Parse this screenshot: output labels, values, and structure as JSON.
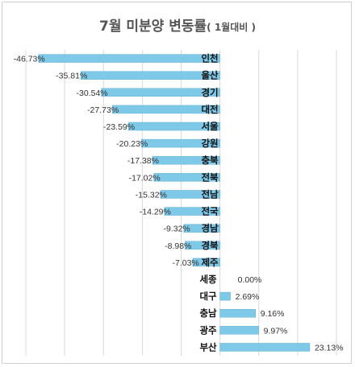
{
  "chart_data": {
    "type": "bar",
    "orientation": "horizontal",
    "title": "7월 미분양 변동률",
    "subtitle": "( 1월대비 )",
    "categories": [
      "인천",
      "울산",
      "경기",
      "대전",
      "서울",
      "강원",
      "충북",
      "전북",
      "전남",
      "전국",
      "경남",
      "경북",
      "제주",
      "세종",
      "대구",
      "충남",
      "광주",
      "부산"
    ],
    "values": [
      -46.73,
      -35.81,
      -30.54,
      -27.73,
      -23.59,
      -20.23,
      -17.38,
      -17.02,
      -15.32,
      -14.29,
      -9.32,
      -8.98,
      -7.03,
      0.0,
      2.69,
      9.16,
      9.97,
      23.13
    ],
    "value_labels": [
      "-46.73%",
      "-35.81%",
      "-30.54%",
      "-27.73%",
      "-23.59%",
      "-20.23%",
      "-17.38%",
      "-17.02%",
      "-15.32%",
      "-14.29%",
      "-9.32%",
      "-8.98%",
      "-7.03%",
      "0.00%",
      "2.69%",
      "9.16%",
      "9.97%",
      "23.13%"
    ],
    "xlim": [
      -50,
      30
    ],
    "grid": true,
    "bar_color": "#7ec8e8"
  }
}
